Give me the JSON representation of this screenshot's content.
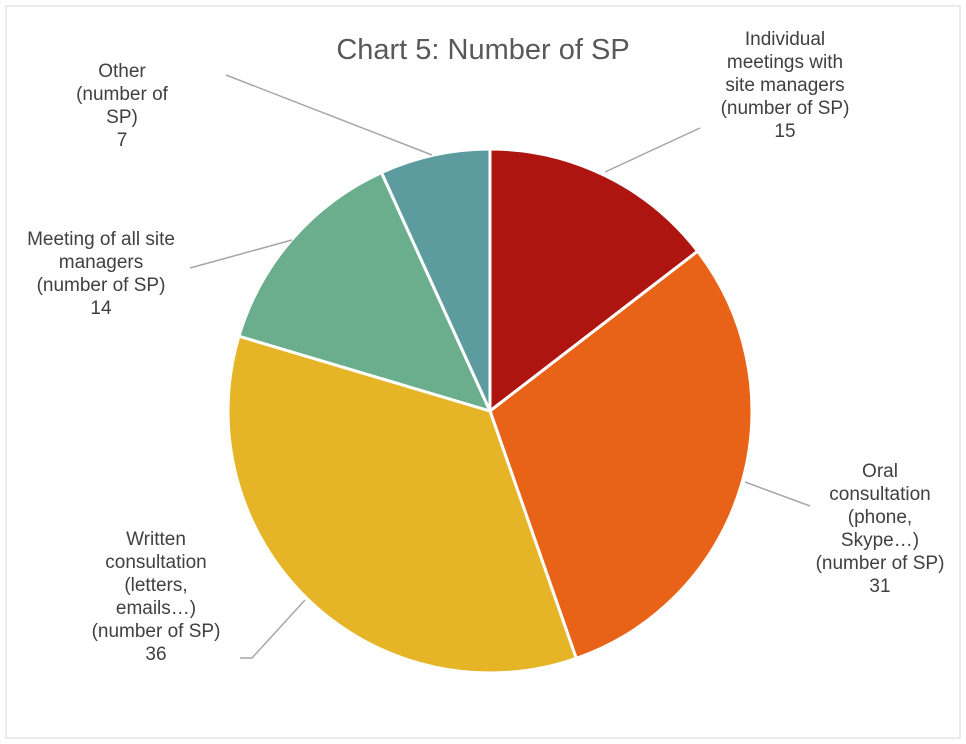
{
  "chart_data": {
    "type": "pie",
    "title": "Chart 5: Number of SP",
    "categories": [
      "Individual meetings with site managers (number of SP)",
      "Oral consultation (phone, Skype…) (number of SP)",
      "Written consultation (letters, emails…) (number of SP)",
      "Meeting of all site managers (number of SP)",
      "Other (number of SP)"
    ],
    "values": [
      15,
      31,
      36,
      14,
      7
    ],
    "colors": [
      "#ae1410",
      "#e86217",
      "#e5b527",
      "#6aae8e",
      "#5c9c9f"
    ]
  }
}
